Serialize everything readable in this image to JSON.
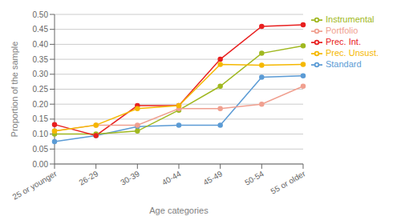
{
  "chart_data": {
    "type": "line",
    "xlabel": "Age categories",
    "ylabel": "Proportion of the sample",
    "categories": [
      "25 or younger",
      "26-29",
      "30-39",
      "40-44",
      "45-49",
      "50-54",
      "55 or older"
    ],
    "series": [
      {
        "name": "Standard",
        "color": "#5b9bd5",
        "marker": "circle",
        "values": [
          0.075,
          0.095,
          0.125,
          0.13,
          0.13,
          0.29,
          0.295
        ]
      },
      {
        "name": "Instrumental",
        "color": "#a0b820",
        "marker": "circle",
        "values": [
          0.1,
          0.1,
          0.11,
          0.18,
          0.26,
          0.37,
          0.395
        ]
      },
      {
        "name": "Prec. Int.",
        "color": "#e82020",
        "marker": "circle",
        "values": [
          0.132,
          0.095,
          0.195,
          0.195,
          0.35,
          0.46,
          0.465
        ]
      },
      {
        "name": "Portfolio",
        "color": "#f0a090",
        "marker": "circle",
        "values": [
          0.11,
          0.13,
          0.13,
          0.185,
          0.185,
          0.2,
          0.26
        ]
      },
      {
        "name": "Prec. Unsust.",
        "color": "#f5b800",
        "marker": "circle",
        "values": [
          0.11,
          0.13,
          0.185,
          0.195,
          0.333,
          0.33,
          0.333
        ]
      }
    ],
    "ylim": [
      0.0,
      0.5
    ],
    "yticks": [
      {
        "value": 0,
        "label": "0.00"
      },
      0.05,
      {
        "value": 0.1,
        "label": "0.10"
      },
      0.15,
      {
        "value": 0.2,
        "label": "0.20"
      },
      0.25,
      {
        "value": 0.3,
        "label": "0.30"
      },
      0.35,
      {
        "value": 0.4,
        "label": "0.40"
      },
      0.45,
      {
        "value": 0.5,
        "label": "0.50"
      }
    ],
    "grid": true,
    "legend": "right"
  }
}
